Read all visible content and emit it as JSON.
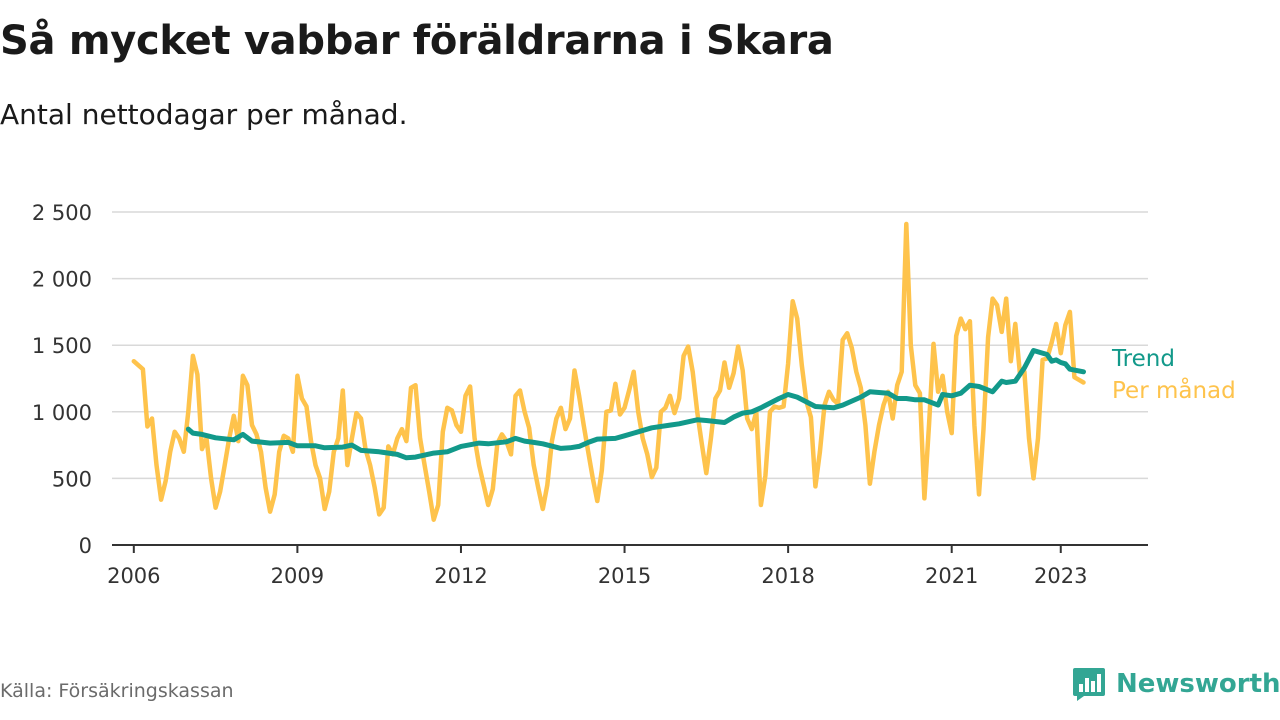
{
  "title": "Så mycket vabbar föräldrarna i Skara",
  "subtitle": "Antal nettodagar per månad.",
  "source": "Källa: Försäkringskassan",
  "brand": "Newsworthy",
  "colors": {
    "trend": "#12998a",
    "monthly": "#fec34c",
    "grid": "#d9d9d9",
    "axis": "#333333",
    "brand": "#33a694"
  },
  "chart_data": {
    "type": "line",
    "title": "Så mycket vabbar föräldrarna i Skara",
    "subtitle": "Antal nettodagar per månad.",
    "xlabel": "",
    "ylabel": "",
    "ylim": [
      0,
      2500
    ],
    "xlim": [
      2005.6,
      2024.6
    ],
    "yticks": [
      0,
      500,
      1000,
      1500,
      2000,
      2500
    ],
    "ytick_labels": [
      "0",
      "500",
      "1 000",
      "1 500",
      "2 000",
      "2 500"
    ],
    "xticks": [
      2006,
      2009,
      2012,
      2015,
      2018,
      2021,
      2023
    ],
    "xtick_labels": [
      "2006",
      "2009",
      "2012",
      "2015",
      "2018",
      "2021",
      "2023"
    ],
    "grid": "horizontal",
    "legend": "right, at line ends",
    "series": [
      {
        "name": "Per månad",
        "color": "#fec34c",
        "x": [
          2006.0,
          2006.083,
          2006.167,
          2006.25,
          2006.333,
          2006.417,
          2006.5,
          2006.583,
          2006.667,
          2006.75,
          2006.833,
          2006.917,
          2007.0,
          2007.083,
          2007.167,
          2007.25,
          2007.333,
          2007.417,
          2007.5,
          2007.583,
          2007.667,
          2007.75,
          2007.833,
          2007.917,
          2008.0,
          2008.083,
          2008.167,
          2008.25,
          2008.333,
          2008.417,
          2008.5,
          2008.583,
          2008.667,
          2008.75,
          2008.833,
          2008.917,
          2009.0,
          2009.083,
          2009.167,
          2009.25,
          2009.333,
          2009.417,
          2009.5,
          2009.583,
          2009.667,
          2009.75,
          2009.833,
          2009.917,
          2010.0,
          2010.083,
          2010.167,
          2010.25,
          2010.333,
          2010.417,
          2010.5,
          2010.583,
          2010.667,
          2010.75,
          2010.833,
          2010.917,
          2011.0,
          2011.083,
          2011.167,
          2011.25,
          2011.333,
          2011.417,
          2011.5,
          2011.583,
          2011.667,
          2011.75,
          2011.833,
          2011.917,
          2012.0,
          2012.083,
          2012.167,
          2012.25,
          2012.333,
          2012.417,
          2012.5,
          2012.583,
          2012.667,
          2012.75,
          2012.833,
          2012.917,
          2013.0,
          2013.083,
          2013.167,
          2013.25,
          2013.333,
          2013.417,
          2013.5,
          2013.583,
          2013.667,
          2013.75,
          2013.833,
          2013.917,
          2014.0,
          2014.083,
          2014.167,
          2014.25,
          2014.333,
          2014.417,
          2014.5,
          2014.583,
          2014.667,
          2014.75,
          2014.833,
          2014.917,
          2015.0,
          2015.083,
          2015.167,
          2015.25,
          2015.333,
          2015.417,
          2015.5,
          2015.583,
          2015.667,
          2015.75,
          2015.833,
          2015.917,
          2016.0,
          2016.083,
          2016.167,
          2016.25,
          2016.333,
          2016.417,
          2016.5,
          2016.583,
          2016.667,
          2016.75,
          2016.833,
          2016.917,
          2017.0,
          2017.083,
          2017.167,
          2017.25,
          2017.333,
          2017.417,
          2017.5,
          2017.583,
          2017.667,
          2017.75,
          2017.833,
          2017.917,
          2018.0,
          2018.083,
          2018.167,
          2018.25,
          2018.333,
          2018.417,
          2018.5,
          2018.583,
          2018.667,
          2018.75,
          2018.833,
          2018.917,
          2019.0,
          2019.083,
          2019.167,
          2019.25,
          2019.333,
          2019.417,
          2019.5,
          2019.583,
          2019.667,
          2019.75,
          2019.833,
          2019.917,
          2020.0,
          2020.083,
          2020.167,
          2020.25,
          2020.333,
          2020.417,
          2020.5,
          2020.583,
          2020.667,
          2020.75,
          2020.833,
          2020.917,
          2021.0,
          2021.083,
          2021.167,
          2021.25,
          2021.333,
          2021.417,
          2021.5,
          2021.583,
          2021.667,
          2021.75,
          2021.833,
          2021.917,
          2022.0,
          2022.083,
          2022.167,
          2022.25,
          2022.333,
          2022.417,
          2022.5,
          2022.583,
          2022.667,
          2022.75,
          2022.833,
          2022.917,
          2023.0,
          2023.083,
          2023.167,
          2023.25,
          2023.333,
          2023.417
        ],
        "values": [
          1380,
          1350,
          1320,
          890,
          950,
          600,
          340,
          480,
          700,
          850,
          800,
          700,
          1000,
          1420,
          1280,
          720,
          800,
          500,
          280,
          400,
          600,
          800,
          970,
          780,
          1270,
          1200,
          900,
          830,
          700,
          430,
          250,
          380,
          700,
          820,
          800,
          700,
          1270,
          1100,
          1040,
          780,
          600,
          500,
          270,
          400,
          700,
          800,
          1160,
          600,
          800,
          990,
          950,
          720,
          600,
          430,
          230,
          280,
          740,
          680,
          800,
          870,
          780,
          1180,
          1200,
          800,
          600,
          400,
          190,
          300,
          850,
          1030,
          1010,
          900,
          850,
          1120,
          1190,
          800,
          600,
          450,
          300,
          420,
          760,
          830,
          780,
          680,
          1120,
          1160,
          1000,
          880,
          600,
          430,
          270,
          450,
          780,
          950,
          1030,
          870,
          950,
          1310,
          1120,
          900,
          700,
          500,
          330,
          560,
          1000,
          1010,
          1210,
          980,
          1030,
          1160,
          1300,
          1000,
          800,
          680,
          510,
          580,
          1000,
          1030,
          1120,
          990,
          1100,
          1420,
          1490,
          1300,
          1000,
          760,
          540,
          800,
          1100,
          1160,
          1370,
          1180,
          1290,
          1490,
          1310,
          950,
          870,
          1000,
          300,
          520,
          1000,
          1040,
          1030,
          1040,
          1360,
          1830,
          1700,
          1350,
          1080,
          960,
          440,
          700,
          1050,
          1150,
          1090,
          1060,
          1540,
          1590,
          1480,
          1300,
          1180,
          900,
          460,
          700,
          900,
          1050,
          1150,
          950,
          1200,
          1300,
          2410,
          1500,
          1200,
          1140,
          350,
          900,
          1510,
          1150,
          1270,
          1000,
          840,
          1570,
          1700,
          1620,
          1680,
          900,
          380,
          870,
          1560,
          1850,
          1800,
          1600,
          1850,
          1380,
          1660,
          1290,
          1300,
          800,
          500,
          800,
          1390,
          1400,
          1520,
          1660,
          1440,
          1650,
          1750,
          1260,
          1240,
          1220
        ]
      },
      {
        "name": "Trend",
        "color": "#12998a",
        "x": [
          2007.0,
          2007.083,
          2007.25,
          2007.5,
          2007.833,
          2008.0,
          2008.167,
          2008.5,
          2008.833,
          2009.0,
          2009.333,
          2009.5,
          2009.833,
          2010.0,
          2010.167,
          2010.5,
          2010.833,
          2011.0,
          2011.167,
          2011.5,
          2011.75,
          2012.0,
          2012.333,
          2012.5,
          2012.833,
          2013.0,
          2013.167,
          2013.333,
          2013.5,
          2013.833,
          2014.0,
          2014.167,
          2014.333,
          2014.5,
          2014.833,
          2015.0,
          2015.167,
          2015.5,
          2015.833,
          2016.0,
          2016.333,
          2016.5,
          2016.833,
          2017.0,
          2017.167,
          2017.333,
          2017.5,
          2017.833,
          2018.0,
          2018.167,
          2018.5,
          2018.833,
          2019.0,
          2019.333,
          2019.5,
          2019.833,
          2020.0,
          2020.167,
          2020.333,
          2020.5,
          2020.75,
          2020.833,
          2021.0,
          2021.167,
          2021.333,
          2021.5,
          2021.75,
          2021.917,
          2022.0,
          2022.167,
          2022.333,
          2022.5,
          2022.75,
          2022.833,
          2022.917,
          2023.0,
          2023.083,
          2023.167,
          2023.417
        ],
        "values": [
          870,
          840,
          830,
          805,
          790,
          830,
          780,
          765,
          770,
          745,
          745,
          730,
          735,
          750,
          710,
          700,
          680,
          655,
          660,
          690,
          700,
          740,
          765,
          760,
          775,
          800,
          780,
          770,
          760,
          725,
          730,
          740,
          770,
          795,
          800,
          820,
          840,
          880,
          900,
          910,
          940,
          935,
          920,
          960,
          990,
          1000,
          1030,
          1100,
          1130,
          1110,
          1040,
          1030,
          1050,
          1110,
          1150,
          1140,
          1100,
          1100,
          1090,
          1090,
          1050,
          1130,
          1120,
          1140,
          1200,
          1190,
          1150,
          1230,
          1220,
          1230,
          1330,
          1460,
          1430,
          1380,
          1390,
          1370,
          1360,
          1320,
          1300
        ]
      }
    ]
  }
}
